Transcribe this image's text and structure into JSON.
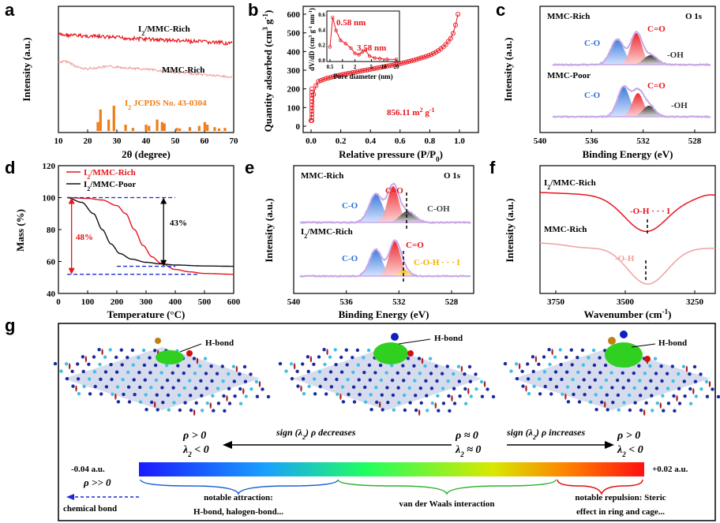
{
  "panel_letters": {
    "a": "a",
    "b": "b",
    "c": "c",
    "d": "d",
    "e": "e",
    "f": "f",
    "g": "g"
  },
  "chart_data": [
    {
      "panel": "a",
      "type": "line",
      "xlabel": "2θ (degree)",
      "ylabel": "Intensity (a.u.)",
      "xlim": [
        10,
        70
      ],
      "xticks": [
        "10",
        "20",
        "30",
        "40",
        "50",
        "60",
        "70"
      ],
      "series": [
        {
          "name": "I2/MMC-Rich",
          "color": "#e8141b"
        },
        {
          "name": "MMC-Rich",
          "color": "#f0a0a0"
        }
      ],
      "reference": {
        "name": "I2 JCPDS No. 43-0304",
        "color": "#f07d1a",
        "x": [
          23.5,
          24.4,
          27.2,
          29.0,
          33.0,
          35.5,
          40.0,
          41.0,
          43.8,
          45.5,
          46.3,
          50.5,
          51.5,
          55.0,
          58.2,
          60.1,
          61.0,
          63.5,
          65.0,
          67.0
        ],
        "h": [
          0.35,
          0.85,
          0.45,
          1.0,
          0.25,
          0.12,
          0.25,
          0.2,
          0.45,
          0.35,
          0.3,
          0.12,
          0.1,
          0.15,
          0.2,
          0.35,
          0.25,
          0.15,
          0.1,
          0.12
        ]
      }
    },
    {
      "panel": "b",
      "type": "line",
      "xlabel": "Relative pressure (P/P0)",
      "ylabel": "Quantity adsorbed (cm3 g-1)",
      "xlim": [
        0,
        1.0
      ],
      "ylim": [
        0,
        600
      ],
      "xticks": [
        "0.0",
        "0.2",
        "0.4",
        "0.6",
        "0.8",
        "1.0"
      ],
      "yticks": [
        "0",
        "100",
        "200",
        "300",
        "400",
        "500",
        "600"
      ],
      "x": [
        0.0,
        0.02,
        0.05,
        0.1,
        0.2,
        0.3,
        0.4,
        0.5,
        0.6,
        0.7,
        0.8,
        0.85,
        0.9,
        0.95,
        0.97,
        0.99
      ],
      "y": [
        30,
        200,
        240,
        255,
        275,
        290,
        305,
        320,
        335,
        355,
        380,
        400,
        430,
        480,
        530,
        600
      ],
      "annotation": "856.11 m2 g-1",
      "inset": {
        "xlabel": "Pore diameter (nm)",
        "ylabel": "dV/dD (cm3 g-1 nm-1)",
        "xticks": [
          "0.5",
          "1",
          "2",
          "5",
          "10",
          "20"
        ],
        "yticks": [
          "0.0",
          "0.2",
          "0.4",
          "0.6"
        ],
        "peaks": [
          "0.58 nm",
          "3.58 nm"
        ],
        "x": [
          0.5,
          0.58,
          0.7,
          0.9,
          1.2,
          1.6,
          2.0,
          2.5,
          3.0,
          3.58,
          4.5,
          6,
          8,
          12,
          20
        ],
        "y": [
          0.2,
          0.65,
          0.45,
          0.3,
          0.25,
          0.18,
          0.1,
          0.08,
          0.12,
          0.15,
          0.06,
          0.03,
          0.02,
          0.01,
          0.01
        ]
      }
    },
    {
      "panel": "c",
      "type": "area",
      "xlabel": "Binding Energy (eV)",
      "ylabel": "Intensity (a.u.)",
      "xlim": [
        540,
        526
      ],
      "xticks": [
        "540",
        "536",
        "532",
        "528"
      ],
      "title": "O 1s",
      "series": [
        {
          "name": "MMC-Rich",
          "peaks": [
            {
              "label": "C-O",
              "color": "#2a6fd6"
            },
            {
              "label": "C=O",
              "color": "#e8141b"
            },
            {
              "label": "-OH",
              "color": "#333333"
            }
          ]
        },
        {
          "name": "MMC-Poor",
          "peaks": [
            {
              "label": "C-O",
              "color": "#2a6fd6"
            },
            {
              "label": "C=O",
              "color": "#e8141b"
            },
            {
              "label": "-OH",
              "color": "#333333"
            }
          ]
        }
      ]
    },
    {
      "panel": "d",
      "type": "line",
      "xlabel": "Temperature (°C)",
      "ylabel": "Mass (%)",
      "xlim": [
        0,
        600
      ],
      "ylim": [
        40,
        120
      ],
      "xticks": [
        "0",
        "100",
        "200",
        "300",
        "400",
        "500",
        "600"
      ],
      "yticks": [
        "40",
        "60",
        "80",
        "100",
        "120"
      ],
      "series": [
        {
          "name": "I2/MMC-Rich",
          "color": "#e8141b",
          "x": [
            30,
            100,
            150,
            200,
            230,
            260,
            290,
            320,
            350,
            400,
            450,
            500,
            600
          ],
          "y": [
            100,
            99.5,
            98.5,
            95,
            90,
            80,
            70,
            63,
            59,
            55,
            53.5,
            52.5,
            52
          ]
        },
        {
          "name": "I2/MMC-Poor",
          "color": "#111111",
          "x": [
            30,
            80,
            120,
            150,
            180,
            210,
            250,
            300,
            350,
            400,
            500,
            600
          ],
          "y": [
            100,
            97,
            90,
            80,
            71,
            65,
            61.5,
            59.5,
            58.5,
            57.8,
            57.2,
            57
          ]
        }
      ],
      "annotations": [
        "48%",
        "43%"
      ]
    },
    {
      "panel": "e",
      "type": "area",
      "xlabel": "Binding Energy (eV)",
      "ylabel": "Intensity (a.u.)",
      "xlim": [
        540,
        526
      ],
      "xticks": [
        "540",
        "536",
        "532",
        "528"
      ],
      "title": "O 1s",
      "series": [
        {
          "name": "MMC-Rich",
          "peaks": [
            {
              "label": "C-O",
              "color": "#2a6fd6"
            },
            {
              "label": "C=O",
              "color": "#e8141b"
            },
            {
              "label": "C-OH",
              "color": "#333333"
            }
          ]
        },
        {
          "name": "I2/MMC-Rich",
          "peaks": [
            {
              "label": "C-O",
              "color": "#2a6fd6"
            },
            {
              "label": "C=O",
              "color": "#e8141b"
            },
            {
              "label": "C-O-H · · · I",
              "color": "#f0b400"
            }
          ]
        }
      ]
    },
    {
      "panel": "f",
      "type": "line",
      "xlabel": "Wavenumber (cm-1)",
      "ylabel": "Intensity (a.u.)",
      "xlim": [
        3800,
        3200
      ],
      "xticks": [
        "3750",
        "3500",
        "3250"
      ],
      "series": [
        {
          "name": "I2/MMC-Rich",
          "color": "#e8141b",
          "label": "-O-H · · · I"
        },
        {
          "name": "MMC-Rich",
          "color": "#f0a0a0",
          "label": "-O-H"
        }
      ]
    }
  ],
  "panel_g": {
    "hbond": "H-bond",
    "left_cond": [
      "ρ > 0",
      "λ2 < 0"
    ],
    "mid_cond": [
      "ρ ≈ 0",
      "λ2 ≈ 0"
    ],
    "right_cond": [
      "ρ > 0",
      "λ2 < 0"
    ],
    "arrow_left": "sign (λ2) ρ decreases",
    "arrow_right": "sign (λ2) ρ increases",
    "scale_min": "-0.04 a.u.",
    "scale_max": "+0.02 a.u.",
    "rho_big": "ρ >> 0",
    "chemical_bond": "chemical bond",
    "attraction": [
      "notable attraction:",
      "H-bond, halogen-bond..."
    ],
    "vdw": "van der Waals interaction",
    "repulsion": [
      "notable repulsion: Steric",
      "effect in ring and cage..."
    ]
  }
}
